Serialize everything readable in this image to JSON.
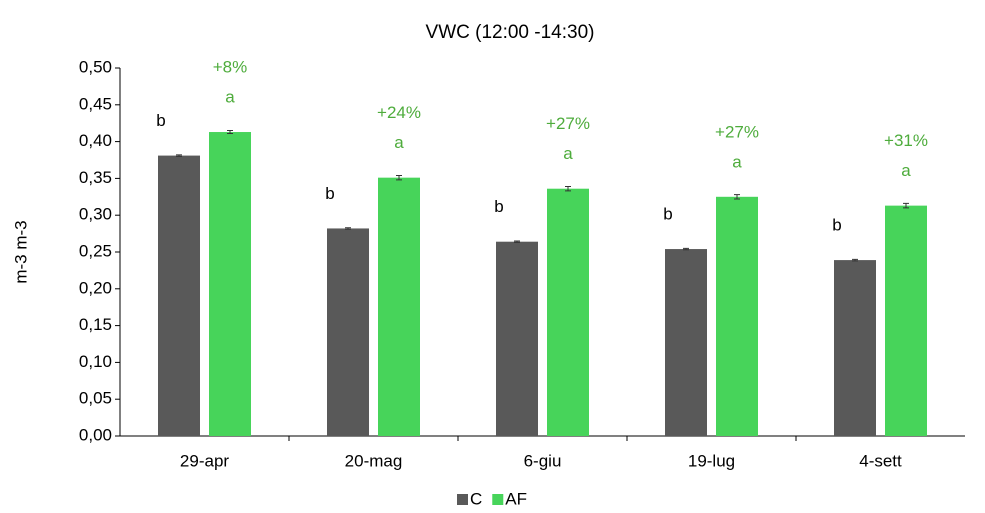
{
  "chart_data": {
    "type": "bar",
    "title": "VWC (12:00 -14:30)",
    "y_label": "m-3 m-3",
    "categories": [
      "29-apr",
      "20-mag",
      "6-giu",
      "19-lug",
      "4-sett"
    ],
    "series": [
      {
        "name": "C",
        "color": "#595959",
        "values": [
          0.381,
          0.282,
          0.264,
          0.254,
          0.239
        ],
        "errors": [
          0.001,
          0.001,
          0.001,
          0.001,
          0.001
        ],
        "letters": [
          "b",
          "b",
          "b",
          "b",
          "b"
        ]
      },
      {
        "name": "AF",
        "color": "#47d45a",
        "values": [
          0.413,
          0.351,
          0.336,
          0.325,
          0.313
        ],
        "errors": [
          0.002,
          0.003,
          0.003,
          0.003,
          0.003
        ],
        "letters": [
          "a",
          "a",
          "a",
          "a",
          "a"
        ]
      }
    ],
    "percent_labels": [
      "+8%",
      "+24%",
      "+27%",
      "+27%",
      "+31%"
    ],
    "percent_color": "#4eac3c",
    "ylim": [
      0,
      0.5
    ],
    "yticks": [
      {
        "value": 0,
        "label": "0,00"
      },
      {
        "value": 0.05,
        "label": "0,05"
      },
      {
        "value": 0.1,
        "label": "0,10"
      },
      {
        "value": 0.15,
        "label": "0,15"
      },
      {
        "value": 0.2,
        "label": "0,20"
      },
      {
        "value": 0.25,
        "label": "0,25"
      },
      {
        "value": 0.3,
        "label": "0,30"
      },
      {
        "value": 0.35,
        "label": "0,35"
      },
      {
        "value": 0.4,
        "label": "0,40"
      },
      {
        "value": 0.45,
        "label": "0,45"
      },
      {
        "value": 0.5,
        "label": "0,50"
      }
    ],
    "legend": "bottom"
  }
}
